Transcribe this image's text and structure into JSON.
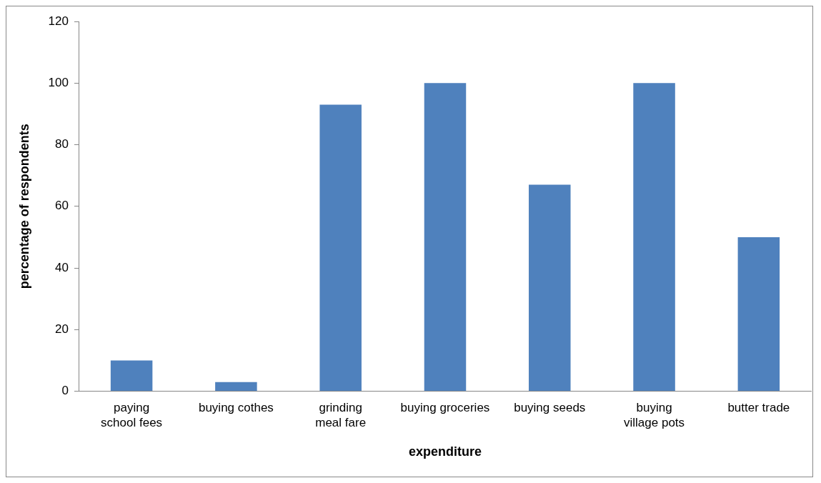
{
  "chart_data": {
    "type": "bar",
    "xlabel": "expenditure",
    "ylabel": "percentage of respondents",
    "categories": [
      "paying school fees",
      "buying cothes",
      "grinding meal fare",
      "buying groceries",
      "buying seeds",
      "buying village pots",
      "butter trade"
    ],
    "values": [
      10,
      3,
      93,
      100,
      67,
      100,
      50
    ],
    "color": "#4f81bd",
    "ylim": [
      0,
      120
    ],
    "yticks": [
      0,
      20,
      40,
      60,
      80,
      100,
      120
    ],
    "grid": false,
    "legend": false
  }
}
